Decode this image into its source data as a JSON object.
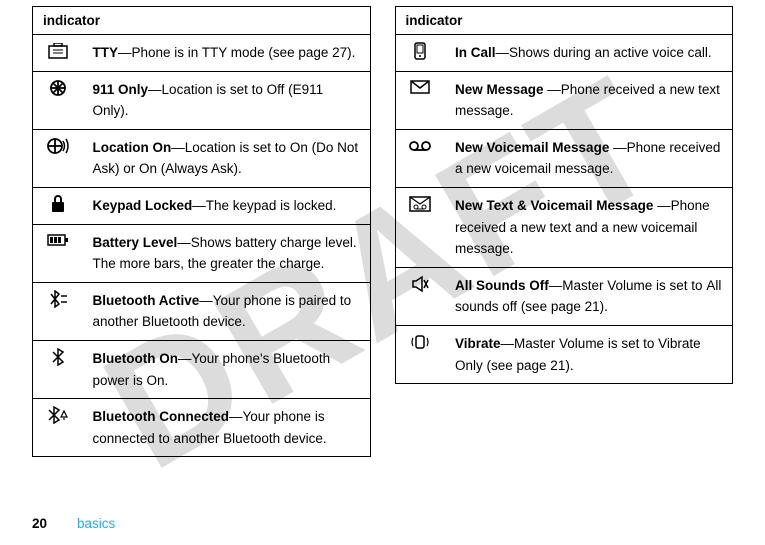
{
  "watermark_text": "DRAFT",
  "page_number": "20",
  "footer_label": "basics",
  "left_table": {
    "header": "indicator",
    "rows": [
      {
        "icon_svg": "<svg width='20' height='16' viewBox='0 0 20 16'><rect x='1' y='3' width='18' height='12' fill='none' stroke='#000' stroke-width='1.5'/><line x1='5' y1='7' x2='15' y2='7' stroke='#000' stroke-width='1'/><line x1='5' y1='10' x2='15' y2='10' stroke='#000' stroke-width='1'/><rect x='6' y='0' width='8' height='3' fill='none' stroke='#000' stroke-width='1.5'/></svg>",
        "html": "<span class='bold'>TTY</span>—Phone is in TTY mode (see page 27)."
      },
      {
        "icon_svg": "<svg width='18' height='18' viewBox='0 0 18 18'><circle cx='9' cy='9' r='7' fill='none' stroke='#000' stroke-width='1.8'/><line x1='9' y1='2' x2='9' y2='16' stroke='#000' stroke-width='1.8'/><line x1='2' y1='9' x2='16' y2='9' stroke='#000' stroke-width='1.8'/><line x1='4' y1='4' x2='14' y2='14' stroke='#000' stroke-width='1.8'/><line x1='14' y1='4' x2='4' y2='14' stroke='#000' stroke-width='1.8'/></svg>",
        "html": "<span class='bold'>911 Only</span>—<span class='cond'>Location</span> is set to <span class='cond'>Off (E911 Only)</span>."
      },
      {
        "icon_svg": "<svg width='24' height='18' viewBox='0 0 24 18'><circle cx='9' cy='9' r='7' fill='none' stroke='#000' stroke-width='1.8'/><line x1='9' y1='2' x2='9' y2='16' stroke='#000' stroke-width='1.8'/><line x1='2' y1='9' x2='16' y2='9' stroke='#000' stroke-width='1.8'/><path d='M17,4 Q20,9 17,14' fill='none' stroke='#000' stroke-width='1.5'/><path d='M20,2 Q24,9 20,16' fill='none' stroke='#000' stroke-width='1.5'/></svg>",
        "html": "<span class='bold'>Location On</span>—<span class='cond'>Location</span> is set to <span class='cond'>On (Do Not Ask)</span> or <span class='cond'>On (Always Ask)</span>."
      },
      {
        "icon_svg": "<svg width='16' height='18' viewBox='0 0 16 18'><rect x='2' y='7' width='12' height='10' rx='1' fill='#000'/><path d='M5,7 V4 a3,3 0 0,1 6,0 V7' fill='none' stroke='#000' stroke-width='2'/></svg>",
        "html": "<span class='bold'>Keypad Locked</span>—The keypad is locked."
      },
      {
        "icon_svg": "<svg width='22' height='14' viewBox='0 0 22 14'><rect x='1' y='2' width='17' height='10' fill='none' stroke='#000' stroke-width='1.5'/><rect x='18' y='5' width='3' height='4' fill='#000'/><rect x='3' y='4' width='3' height='6' fill='#000'/><rect x='7' y='4' width='3' height='6' fill='#000'/><rect x='11' y='4' width='3' height='6' fill='#000'/></svg>",
        "html": "<span class='bold'>Battery Level</span>—Shows battery charge level. The more bars, the greater the charge."
      },
      {
        "icon_svg": "<svg width='20' height='18' viewBox='0 0 20 18'><path d='M3,4 L11,14 L7,17 L7,1 L11,4 L3,14' fill='none' stroke='#000' stroke-width='1.5'/><line x1='13' y1='6' x2='19' y2='6' stroke='#000' stroke-width='1.5'/><line x1='13' y1='12' x2='19' y2='12' stroke='#000' stroke-width='1.5'/></svg>",
        "html": "<span class='bold'>Bluetooth Active</span>—Your phone is paired to another Bluetooth device."
      },
      {
        "icon_svg": "<svg width='14' height='18' viewBox='0 0 14 18'><path d='M2,4 L12,14 L7,17 L7,1 L12,4 L2,14' fill='none' stroke='#000' stroke-width='1.5'/></svg>",
        "html": "<span class='bold'>Bluetooth On</span>—Your phone's Bluetooth power is <span class='cond'>On</span>."
      },
      {
        "icon_svg": "<svg width='22' height='18' viewBox='0 0 22 18'><path d='M2,4 L12,14 L7,17 L7,1 L12,4 L2,14' fill='none' stroke='#000' stroke-width='1.5'/><path d='M14,11 L17,5 L20,11 Z' fill='none' stroke='#000' stroke-width='1.2'/><line x1='16' y1='13' x2='18' y2='13' stroke='#000' stroke-width='1.2'/></svg>",
        "html": "<span class='bold'>Bluetooth Connected</span>—Your phone is connected to another Bluetooth device."
      }
    ]
  },
  "right_table": {
    "header": "indicator",
    "rows": [
      {
        "icon_svg": "<svg width='16' height='18' viewBox='0 0 16 18'><rect x='3' y='1' width='10' height='16' rx='2' fill='none' stroke='#000' stroke-width='1.5'/><rect x='5' y='3' width='6' height='8' fill='none' stroke='#000' stroke-width='1'/><circle cx='8' cy='14' r='1' fill='#000'/></svg>",
        "html": "<span class='bold'>In Call</span>—Shows during an active voice call."
      },
      {
        "icon_svg": "<svg width='20' height='14' viewBox='0 0 20 14'><rect x='1' y='1' width='18' height='12' fill='none' stroke='#000' stroke-width='1.5'/><path d='M1,1 L10,8 L19,1' fill='none' stroke='#000' stroke-width='1.5'/></svg>",
        "html": "<span class='bold'>New Message </span>—Phone received a new text message."
      },
      {
        "icon_svg": "<svg width='22' height='12' viewBox='0 0 22 12'><circle cx='5' cy='6' r='4' fill='none' stroke='#000' stroke-width='1.8'/><circle cx='17' cy='6' r='4' fill='none' stroke='#000' stroke-width='1.8'/><line x1='5' y1='10' x2='17' y2='10' stroke='#000' stroke-width='1.8'/></svg>",
        "html": "<span class='bold'>New Voicemail Message </span>—Phone received a new voicemail message."
      },
      {
        "icon_svg": "<svg width='22' height='16' viewBox='0 0 22 16'><rect x='1' y='1' width='20' height='14' fill='none' stroke='#000' stroke-width='1.5'/><path d='M1,1 L11,8 L21,1' fill='none' stroke='#000' stroke-width='1.2'/><circle cx='7' cy='11' r='2' fill='none' stroke='#000' stroke-width='1'/><circle cx='15' cy='11' r='2' fill='none' stroke='#000' stroke-width='1'/><line x1='7' y1='13' x2='15' y2='13' stroke='#000' stroke-width='1'/></svg>",
        "html": "<span class='bold'>New Text &amp; Voicemail Message </span>—Phone received a new text and a new voicemail message."
      },
      {
        "icon_svg": "<svg width='18' height='18' viewBox='0 0 18 18'><path d='M2,6 L5,6 L11,2 L11,16 L5,12 L2,12 Z' fill='none' stroke='#000' stroke-width='1.5'/><line x1='13' y1='5' x2='17' y2='13' stroke='#000' stroke-width='1.5'/><line x1='17' y1='5' x2='13' y2='13' stroke='#000' stroke-width='1.5'/></svg>",
        "html": "<span class='bold'>All Sounds Off</span>—<span class='cond'>Master Volume</span> is set to <span class='cond'>All sounds off</span> (see page 21)."
      },
      {
        "icon_svg": "<svg width='20' height='18' viewBox='0 0 20 18'><rect x='6' y='3' width='8' height='12' rx='2' fill='none' stroke='#000' stroke-width='1.5'/><path d='M3,5 Q1,9 3,13' fill='none' stroke='#000' stroke-width='1.2'/><path d='M17,5 Q19,9 17,13' fill='none' stroke='#000' stroke-width='1.2'/></svg>",
        "html": "<span class='bold'>Vibrate</span>—<span class='cond'>Master Volume</span> is set to <span class='cond'>Vibrate Only</span> (see page 21)."
      }
    ]
  }
}
